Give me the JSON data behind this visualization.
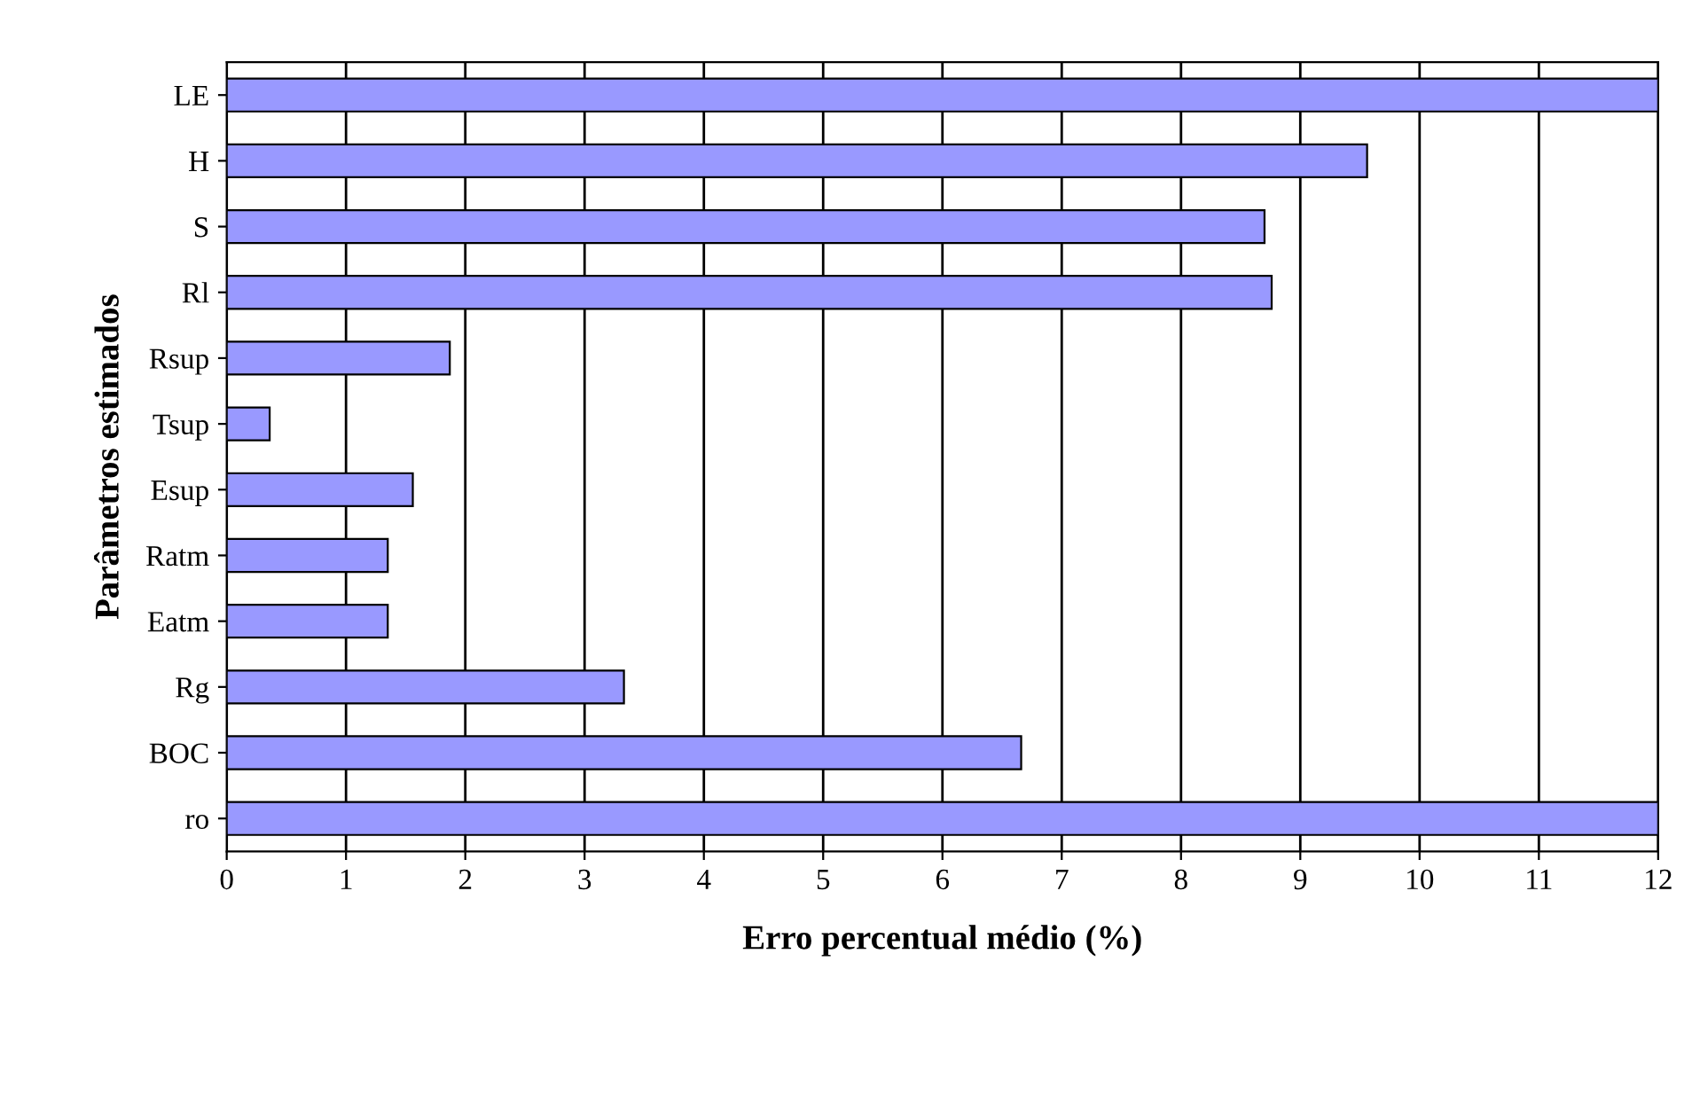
{
  "chart_data": {
    "type": "bar",
    "orientation": "horizontal",
    "xlabel": "Erro percentual médio (%)",
    "ylabel": "Parâmetros estimados",
    "categories": [
      "LE",
      "H",
      "S",
      "Rl",
      "Rsup",
      "Tsup",
      "Esup",
      "Ratm",
      "Eatm",
      "Rg",
      "BOC",
      "ro"
    ],
    "values": [
      12,
      9.56,
      8.7,
      8.76,
      1.87,
      0.36,
      1.56,
      1.35,
      1.35,
      3.33,
      6.66,
      12
    ],
    "color": "#9999ff",
    "xlim": [
      0,
      12
    ],
    "xticks": [
      0,
      1,
      2,
      3,
      4,
      5,
      6,
      7,
      8,
      9,
      10,
      11,
      12
    ],
    "grid": "x",
    "legend": false
  }
}
